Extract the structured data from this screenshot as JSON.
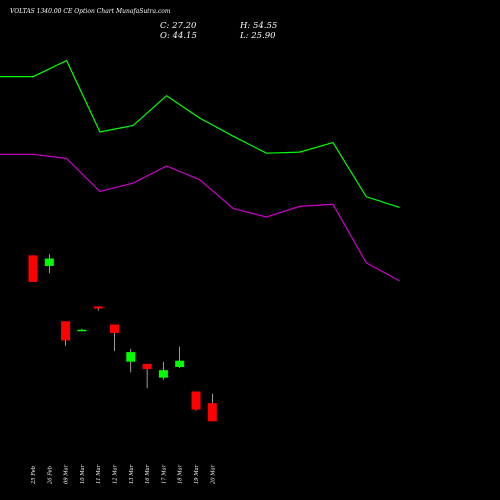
{
  "title": "VOLTAS 1340.00 CE Option Chart MunafaSutra.com",
  "ohlc": {
    "close_label": "C: 27.20",
    "open_label": "O: 44.15",
    "high_label": "H: 54.55",
    "low_label": "L: 25.90"
  },
  "colors": {
    "background": "#000000",
    "up": "#00ff00",
    "down": "#ff0000",
    "upper_band": "#00ff00",
    "lower_band": "#cc00cc",
    "text": "#ffffff"
  },
  "chart_data": {
    "type": "candlestick",
    "title": "VOLTAS 1340.00 CE Option Chart MunafaSutra.com",
    "dates": [
      "25 Feb",
      "26 Feb",
      "09 Mar",
      "10 Mar",
      "11 Mar",
      "12 Mar",
      "13 Mar",
      "16 Mar",
      "17 Mar",
      "18 Mar",
      "19 Mar",
      "20 Mar"
    ],
    "candles": [
      {
        "date": "25 Feb",
        "open": 130,
        "high": 130,
        "low": 105,
        "close": 105,
        "dir": "down"
      },
      {
        "date": "26 Feb",
        "open": 120,
        "high": 131,
        "low": 113,
        "close": 127,
        "dir": "up"
      },
      {
        "date": "09 Mar",
        "open": 68,
        "high": 68,
        "low": 45,
        "close": 50,
        "dir": "down"
      },
      {
        "date": "10 Mar",
        "open": 60,
        "high": 61,
        "low": 59,
        "close": 60,
        "dir": "up"
      },
      {
        "date": "11 Mar",
        "open": 82,
        "high": 82,
        "low": 78,
        "close": 80,
        "dir": "down"
      },
      {
        "date": "12 Mar",
        "open": 65,
        "high": 65,
        "low": 40,
        "close": 57,
        "dir": "down"
      },
      {
        "date": "13 Mar",
        "open": 30,
        "high": 42,
        "low": 20,
        "close": 39,
        "dir": "up"
      },
      {
        "date": "16 Mar",
        "open": 28,
        "high": 28,
        "low": 5,
        "close": 23,
        "dir": "down"
      },
      {
        "date": "17 Mar",
        "open": 15,
        "high": 30,
        "low": 13,
        "close": 22,
        "dir": "up"
      },
      {
        "date": "18 Mar",
        "open": 25,
        "high": 44,
        "low": 24,
        "close": 31,
        "dir": "up"
      },
      {
        "date": "19 Mar",
        "open": 2,
        "high": 2,
        "low": -16,
        "close": -15,
        "dir": "down"
      },
      {
        "date": "20 Mar",
        "open": -9,
        "high": 0,
        "low": -26,
        "close": -26,
        "dir": "down"
      }
    ],
    "upper_band": [
      298,
      298,
      313,
      246,
      252,
      280,
      259,
      242,
      226,
      227,
      236,
      185,
      175
    ],
    "lower_band": [
      225,
      225,
      221,
      190,
      198,
      214,
      201,
      174,
      166,
      176,
      178,
      123,
      106
    ],
    "ylim": [
      -100,
      370
    ]
  }
}
